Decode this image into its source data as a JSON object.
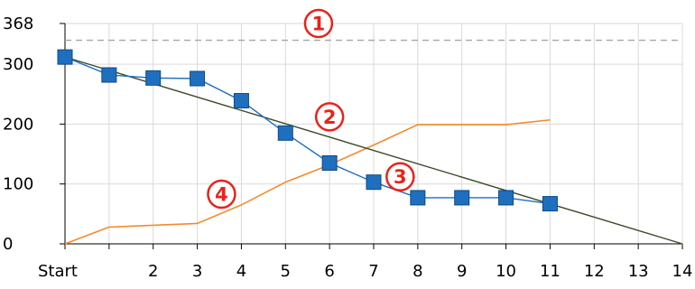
{
  "chart_data": {
    "type": "line",
    "title": "",
    "xlabel": "",
    "ylabel": "",
    "x_ticks": [
      "Start",
      "",
      "2",
      "3",
      "4",
      "5",
      "6",
      "7",
      "8",
      "9",
      "10",
      "11",
      "12",
      "13",
      "14"
    ],
    "y_ticks": [
      0,
      100,
      200,
      300,
      368
    ],
    "xlim": [
      0,
      14
    ],
    "ylim": [
      0,
      368
    ],
    "grid": true,
    "legend": "none",
    "series": [
      {
        "role": "remaining-work",
        "color": "#1f6fbf",
        "marker": "square",
        "x": [
          0,
          1,
          2,
          3,
          4,
          5,
          6,
          7,
          8,
          9,
          10,
          11
        ],
        "y": [
          312,
          282,
          277,
          276,
          239,
          185,
          135,
          103,
          77,
          77,
          77,
          67
        ]
      },
      {
        "role": "ideal-trend",
        "color": "#3c4a2a",
        "x": [
          0,
          14
        ],
        "y": [
          312,
          0
        ]
      },
      {
        "role": "completed-work",
        "color": "#f58a2d",
        "x": [
          0,
          1,
          2,
          3,
          4,
          5,
          6,
          7,
          8,
          9,
          10,
          11
        ],
        "y": [
          0,
          28,
          31,
          34,
          65,
          103,
          132,
          165,
          199,
          199,
          199,
          207
        ]
      },
      {
        "role": "total-scope",
        "color": "#a6a6a6",
        "style": "dashed",
        "x": [
          0,
          14
        ],
        "y": [
          340,
          340
        ]
      }
    ],
    "annotations": [
      {
        "label": "1",
        "x": 5.75,
        "y": 368
      },
      {
        "label": "2",
        "x": 6.0,
        "y": 212
      },
      {
        "label": "3",
        "x": 7.6,
        "y": 112
      },
      {
        "label": "4",
        "x": 3.55,
        "y": 83
      }
    ]
  }
}
